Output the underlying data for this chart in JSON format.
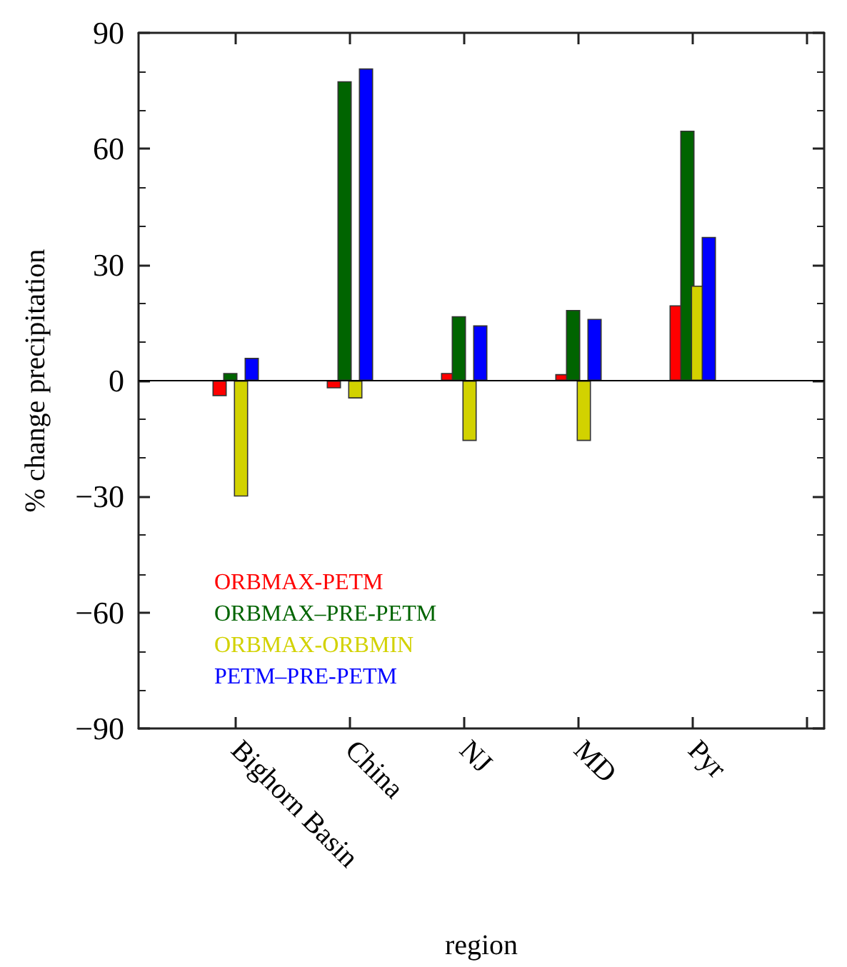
{
  "chart_data": {
    "type": "bar",
    "xlabel": "region",
    "ylabel": "% change precipitation",
    "categories": [
      "Bighorn Basin",
      "China",
      "NJ",
      "MD",
      "Pyr",
      null
    ],
    "series": [
      {
        "name": "ORBMAX-PETM",
        "color": "#ff0000",
        "values": [
          -4,
          -2,
          2,
          1.7,
          19.5,
          null
        ]
      },
      {
        "name": "ORBMAX–PRE-PETM",
        "color": "#006400",
        "values": [
          2,
          77.5,
          16.7,
          18.3,
          64.7,
          null
        ]
      },
      {
        "name": "ORBMAX-ORBMIN",
        "color": "#d2d200",
        "values": [
          -30,
          -4.6,
          -15.6,
          -15.6,
          24.6,
          null
        ]
      },
      {
        "name": "PETM–PRE-PETM",
        "color": "#0000ff",
        "values": [
          5.9,
          80.8,
          14.3,
          16,
          37.2,
          null
        ]
      }
    ],
    "ylim": [
      -90,
      90
    ],
    "yticks": [
      -90,
      -60,
      -30,
      0,
      30,
      60,
      90
    ],
    "ref_lines": [
      {
        "axis": "y",
        "value": 0,
        "color": "#000000"
      }
    ],
    "legend": "bottom left",
    "grid": false
  }
}
